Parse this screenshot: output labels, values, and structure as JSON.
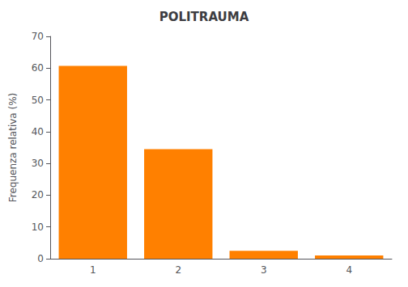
{
  "chart_data": {
    "type": "bar",
    "title": "POLITRAUMA",
    "categories": [
      1,
      2,
      3,
      4
    ],
    "values": [
      60.7,
      34.5,
      2.5,
      1.0
    ],
    "color": "#FF8000",
    "ylabel": "Frequenza relativa (%)",
    "ylim": [
      0,
      70
    ],
    "yticks": [
      0,
      10,
      20,
      30,
      40,
      50,
      60,
      70
    ],
    "grid": false
  }
}
